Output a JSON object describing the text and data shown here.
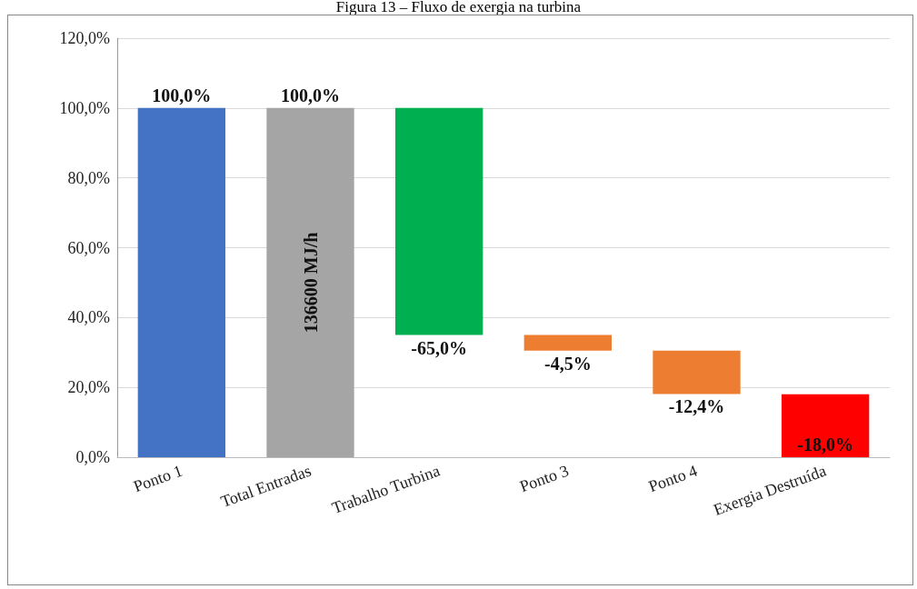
{
  "chart_data": {
    "type": "bar",
    "title": "Figura 13 – Fluxo de exergia na turbina",
    "categories": [
      "Ponto 1",
      "Total Entradas",
      "Trabalho Turbina",
      "Ponto 3",
      "Ponto 4",
      "Exergia Destruída"
    ],
    "values": [
      100,
      100,
      -65,
      -4.5,
      -12.4,
      -18
    ],
    "base": [
      0,
      0,
      100,
      35,
      30.5,
      18
    ],
    "colors": [
      "#4472c4",
      "#a5a5a5",
      "#00b050",
      "#ed7d31",
      "#ed7d31",
      "#ff0000"
    ],
    "value_labels": [
      "100,0%",
      "100,0%",
      "-65,0%",
      "-4,5%",
      "-12,4%",
      "-18,0%"
    ],
    "annotations": [
      {
        "text": "136600 MJ/h",
        "x": "Total Entradas",
        "y": 50
      }
    ],
    "ylim": [
      0,
      120
    ],
    "yticks": [
      {
        "value": 0,
        "label": "0,0%"
      },
      {
        "value": 20,
        "label": "20,0%"
      },
      {
        "value": 40,
        "label": "40,0%"
      },
      {
        "value": 60,
        "label": "60,0%"
      },
      {
        "value": 80,
        "label": "80,0%"
      },
      {
        "value": 100,
        "label": "100,0%"
      },
      {
        "value": 120,
        "label": "120,0%"
      }
    ],
    "grid": "y"
  }
}
